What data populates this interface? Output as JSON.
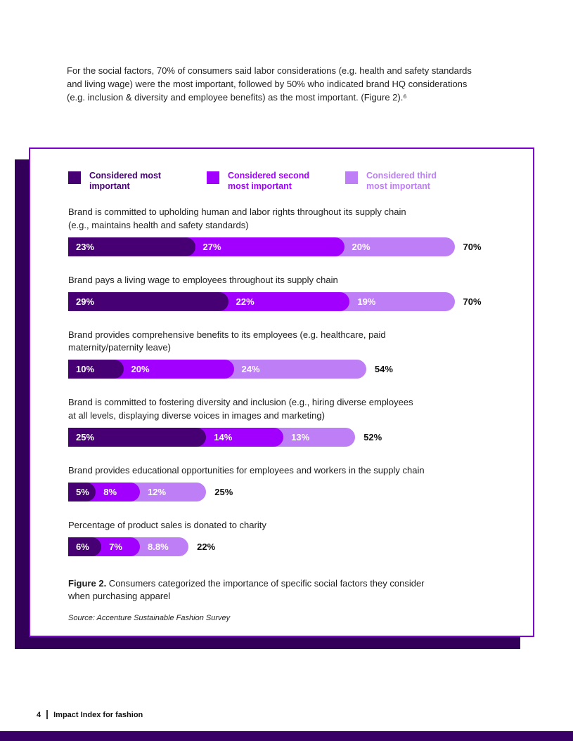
{
  "page": {
    "intro_paragraph": "For the social factors, 70% of consumers said labor considerations (e.g. health and safety standards\nand living wage) were the most important, followed by 50% who indicated brand HQ considerations\n(e.g. inclusion & diversity and employee benefits) as the most important. (Figure 2).⁶",
    "footer": {
      "page_number": "4",
      "title": "Impact Index for fashion"
    }
  },
  "figure": {
    "legend": [
      {
        "label": "Considered most\nimportant",
        "color": "#460073"
      },
      {
        "label": "Considered second\nmost important",
        "color": "#A100FF"
      },
      {
        "label": "Considered third\nmost important",
        "color": "#BE7EF6"
      }
    ],
    "caption_bold": "Figure 2.",
    "caption_rest": " Consumers categorized the importance of specific social factors they consider\nwhen purchasing apparel",
    "source": "Source: Accenture Sustainable Fashion Survey",
    "accent_colors": {
      "border": "#7E00CF",
      "shadow": "#320059",
      "bottom_bar": "#380066"
    }
  },
  "chart_data": {
    "type": "bar",
    "orientation": "horizontal_stacked",
    "unit": "%",
    "categories": [
      "Brand is committed to upholding human and labor rights throughout its supply chain\n(e.g., maintains health and safety standards)",
      "Brand pays a living wage to employees throughout its supply chain",
      "Brand provides comprehensive benefits to its employees (e.g. healthcare, paid\nmaternity/paternity leave)",
      "Brand is committed to fostering diversity and inclusion (e.g., hiring diverse employees\nat all levels, displaying diverse voices in images and marketing)",
      "Brand provides educational opportunities for employees and workers in the supply chain",
      "Percentage of product sales is donated to charity"
    ],
    "series": [
      {
        "name": "Considered most important",
        "color": "#460073",
        "values": [
          23,
          29,
          10,
          25,
          5,
          6
        ],
        "labels": [
          "23%",
          "29%",
          "10%",
          "25%",
          "5%",
          "6%"
        ]
      },
      {
        "name": "Considered second most important",
        "color": "#A100FF",
        "values": [
          27,
          22,
          20,
          14,
          8,
          7
        ],
        "labels": [
          "27%",
          "22%",
          "20%",
          "14%",
          "8%",
          "7%"
        ]
      },
      {
        "name": "Considered third most important",
        "color": "#BE7EF6",
        "values": [
          20,
          19,
          24,
          13,
          12,
          8.8
        ],
        "labels": [
          "20%",
          "19%",
          "24%",
          "13%",
          "12%",
          "8.8%"
        ]
      }
    ],
    "totals": [
      "70%",
      "70%",
      "54%",
      "52%",
      "25%",
      "22%"
    ],
    "xlim": [
      0,
      84
    ],
    "legend_position": "top"
  }
}
